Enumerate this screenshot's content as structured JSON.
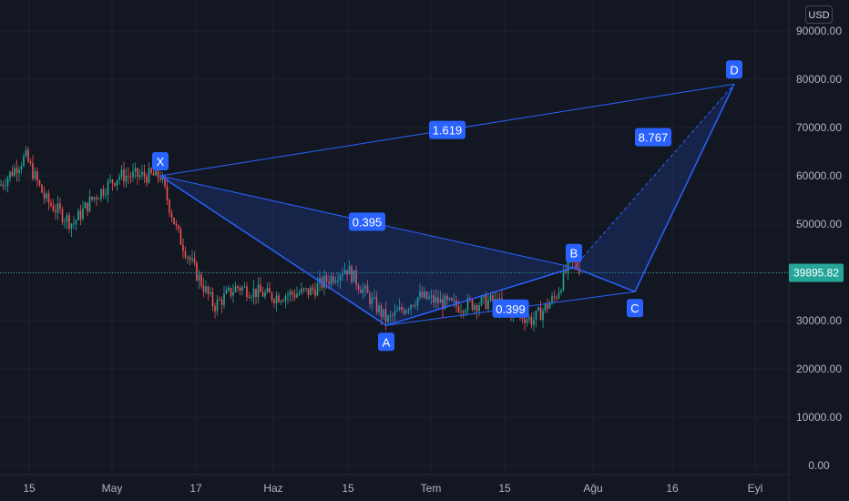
{
  "currency": "USD",
  "last_price": "39895.82",
  "price_axis": {
    "labels": [
      "90000.00",
      "80000.00",
      "70000.00",
      "60000.00",
      "50000.00",
      "40000.00",
      "30000.00",
      "20000.00",
      "10000.00",
      "0.00"
    ],
    "values": [
      90000,
      80000,
      70000,
      60000,
      50000,
      40000,
      30000,
      20000,
      10000,
      0
    ]
  },
  "time_axis": [
    "15",
    "May",
    "17",
    "Haz",
    "15",
    "Tem",
    "15",
    "Ağu",
    "16",
    "Eyl"
  ],
  "pattern": {
    "points": [
      {
        "label": "X",
        "price": 60000
      },
      {
        "label": "A",
        "price": 29000
      },
      {
        "label": "B",
        "price": 41000
      },
      {
        "label": "C",
        "price": 36000
      },
      {
        "label": "D",
        "price": 79000
      }
    ],
    "ratios": [
      "1.619",
      "0.395",
      "0.399",
      "8.767"
    ]
  },
  "colors": {
    "background": "#131722",
    "candle_up": "#26a69a",
    "candle_down": "#ef5350",
    "pattern_line": "#2962ff",
    "label_fill": "#2962ff",
    "price_tag": "#26a69a",
    "grid": "#1e222d",
    "axis_text": "#b2b5be"
  }
}
